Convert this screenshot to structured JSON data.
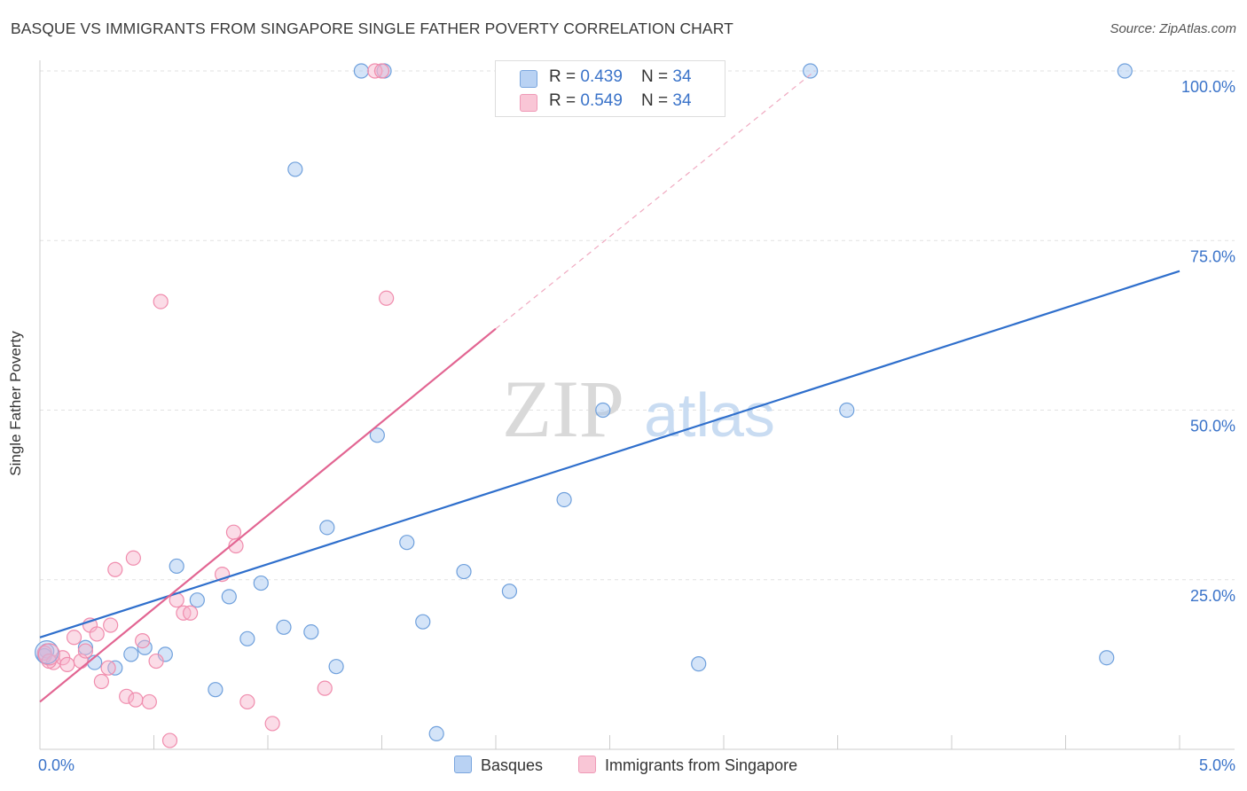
{
  "title": "BASQUE VS IMMIGRANTS FROM SINGAPORE SINGLE FATHER POVERTY CORRELATION CHART",
  "source": "Source: ZipAtlas.com",
  "watermark": {
    "zip": "ZIP",
    "atlas": "atlas"
  },
  "legend_top": [
    {
      "r_label": "R = ",
      "r_value": "0.439",
      "n_label": "N = ",
      "n_value": "34"
    },
    {
      "r_label": "R = ",
      "r_value": "0.549",
      "n_label": "N = ",
      "n_value": "34"
    }
  ],
  "chart_data": {
    "type": "scatter",
    "ylabel": "Single Father Poverty",
    "xlim": [
      0,
      5
    ],
    "ylim": [
      0,
      100
    ],
    "x_tick_labels": [
      {
        "value": 0,
        "label": "0.0%"
      },
      {
        "value": 5,
        "label": "5.0%"
      }
    ],
    "y_tick_labels": [
      {
        "value": 25,
        "label": "25.0%"
      },
      {
        "value": 50,
        "label": "50.0%"
      },
      {
        "value": 75,
        "label": "75.0%"
      },
      {
        "value": 100,
        "label": "100.0%"
      }
    ],
    "grid": true,
    "legend_position": "bottom",
    "colors": {
      "basques": "#6fa0dc",
      "singapore": "#f08cad",
      "basques_line": "#2f6fcc",
      "singapore_line": "#e26592"
    },
    "series": [
      {
        "name": "Basques",
        "points": [
          {
            "x": 0.03,
            "y": 14.5
          },
          {
            "x": 0.2,
            "y": 15.0
          },
          {
            "x": 0.24,
            "y": 12.8
          },
          {
            "x": 0.33,
            "y": 12.0
          },
          {
            "x": 0.4,
            "y": 14.0
          },
          {
            "x": 0.46,
            "y": 15.0
          },
          {
            "x": 0.55,
            "y": 14.0
          },
          {
            "x": 0.6,
            "y": 27.0
          },
          {
            "x": 0.69,
            "y": 22.0
          },
          {
            "x": 0.77,
            "y": 8.8
          },
          {
            "x": 0.83,
            "y": 22.5
          },
          {
            "x": 0.91,
            "y": 16.3
          },
          {
            "x": 0.97,
            "y": 24.5
          },
          {
            "x": 1.07,
            "y": 18.0
          },
          {
            "x": 1.12,
            "y": 85.5
          },
          {
            "x": 1.19,
            "y": 17.3
          },
          {
            "x": 1.26,
            "y": 32.7
          },
          {
            "x": 1.3,
            "y": 12.2
          },
          {
            "x": 1.41,
            "y": 100.0
          },
          {
            "x": 1.48,
            "y": 46.3
          },
          {
            "x": 1.51,
            "y": 100.0
          },
          {
            "x": 1.61,
            "y": 30.5
          },
          {
            "x": 1.68,
            "y": 18.8
          },
          {
            "x": 1.74,
            "y": 2.3
          },
          {
            "x": 1.86,
            "y": 26.2
          },
          {
            "x": 2.06,
            "y": 23.3
          },
          {
            "x": 2.3,
            "y": 36.8
          },
          {
            "x": 2.47,
            "y": 50.0
          },
          {
            "x": 2.89,
            "y": 12.6
          },
          {
            "x": 3.38,
            "y": 100.0
          },
          {
            "x": 3.54,
            "y": 50.0
          },
          {
            "x": 4.68,
            "y": 13.5
          },
          {
            "x": 4.76,
            "y": 100.0
          },
          {
            "x": 0.02,
            "y": 13.8
          }
        ]
      },
      {
        "name": "Immigrants from Singapore",
        "points": [
          {
            "x": 0.02,
            "y": 14.2
          },
          {
            "x": 0.06,
            "y": 12.8
          },
          {
            "x": 0.1,
            "y": 13.5
          },
          {
            "x": 0.12,
            "y": 12.5
          },
          {
            "x": 0.15,
            "y": 16.5
          },
          {
            "x": 0.18,
            "y": 13.0
          },
          {
            "x": 0.2,
            "y": 14.5
          },
          {
            "x": 0.22,
            "y": 18.3
          },
          {
            "x": 0.25,
            "y": 17.0
          },
          {
            "x": 0.27,
            "y": 10.0
          },
          {
            "x": 0.3,
            "y": 12.0
          },
          {
            "x": 0.31,
            "y": 18.3
          },
          {
            "x": 0.33,
            "y": 26.5
          },
          {
            "x": 0.38,
            "y": 7.8
          },
          {
            "x": 0.41,
            "y": 28.2
          },
          {
            "x": 0.42,
            "y": 7.3
          },
          {
            "x": 0.45,
            "y": 16.0
          },
          {
            "x": 0.48,
            "y": 7.0
          },
          {
            "x": 0.51,
            "y": 13.0
          },
          {
            "x": 0.53,
            "y": 66.0
          },
          {
            "x": 0.57,
            "y": 1.3
          },
          {
            "x": 0.6,
            "y": 22.0
          },
          {
            "x": 0.63,
            "y": 20.1
          },
          {
            "x": 0.66,
            "y": 20.1
          },
          {
            "x": 0.8,
            "y": 25.8
          },
          {
            "x": 0.85,
            "y": 32.0
          },
          {
            "x": 0.86,
            "y": 30.0
          },
          {
            "x": 0.91,
            "y": 7.0
          },
          {
            "x": 1.02,
            "y": 3.8
          },
          {
            "x": 1.25,
            "y": 9.0
          },
          {
            "x": 1.47,
            "y": 100.0
          },
          {
            "x": 1.5,
            "y": 100.0
          },
          {
            "x": 1.52,
            "y": 66.5
          },
          {
            "x": 0.04,
            "y": 13.0
          }
        ]
      }
    ],
    "trend_lines": [
      {
        "series": "Basques",
        "from": {
          "x": 0,
          "y": 16.5
        },
        "to": {
          "x": 5,
          "y": 70.5
        }
      },
      {
        "series": "Immigrants from Singapore",
        "from": {
          "x": 0,
          "y": 7.0
        },
        "to": {
          "x": 2.0,
          "y": 62.0
        },
        "dashed_to": {
          "x": 3.4,
          "y": 100.0
        }
      }
    ]
  }
}
